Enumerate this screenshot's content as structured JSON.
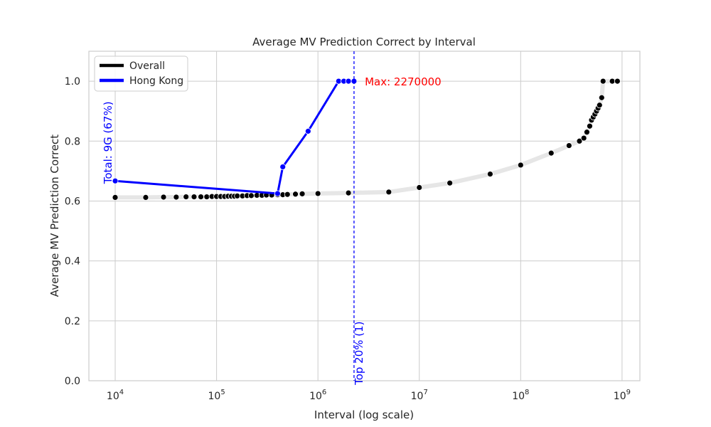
{
  "chart_data": {
    "type": "line",
    "title": "Average MV Prediction Correct by Interval",
    "xlabel": "Interval (log scale)",
    "ylabel": "Average MV Prediction Correct",
    "xscale": "log",
    "xlim": [
      5500,
      1500000000
    ],
    "ylim": [
      0,
      1.1
    ],
    "x_ticks": [
      {
        "value": 10000,
        "base": "10",
        "exp": "4"
      },
      {
        "value": 100000,
        "base": "10",
        "exp": "5"
      },
      {
        "value": 1000000,
        "base": "10",
        "exp": "6"
      },
      {
        "value": 10000000,
        "base": "10",
        "exp": "7"
      },
      {
        "value": 100000000,
        "base": "10",
        "exp": "8"
      },
      {
        "value": 1000000000,
        "base": "10",
        "exp": "9"
      }
    ],
    "y_ticks": [
      "0.0",
      "0.2",
      "0.4",
      "0.6",
      "0.8",
      "1.0"
    ],
    "grid": true,
    "legend_position": "top-left",
    "series": [
      {
        "name": "Overall",
        "color": "#000000",
        "line_color": "#e6e6e6",
        "x": [
          10000,
          20000,
          30000,
          40000,
          50000,
          60000,
          70000,
          80000,
          90000,
          100000,
          110000,
          120000,
          130000,
          140000,
          150000,
          160000,
          180000,
          200000,
          220000,
          250000,
          280000,
          310000,
          350000,
          400000,
          450000,
          500000,
          600000,
          700000,
          1000000,
          2000000,
          5000000,
          10000000,
          20000000,
          50000000,
          100000000,
          200000000,
          300000000,
          380000000,
          420000000,
          450000000,
          480000000,
          500000000,
          520000000,
          540000000,
          560000000,
          580000000,
          600000000,
          630000000,
          650000000,
          800000000,
          900000000
        ],
        "y": [
          0.612,
          0.612,
          0.613,
          0.613,
          0.614,
          0.614,
          0.614,
          0.614,
          0.615,
          0.615,
          0.615,
          0.615,
          0.616,
          0.616,
          0.616,
          0.617,
          0.617,
          0.618,
          0.618,
          0.619,
          0.619,
          0.62,
          0.62,
          0.621,
          0.621,
          0.622,
          0.623,
          0.624,
          0.625,
          0.627,
          0.63,
          0.645,
          0.66,
          0.69,
          0.72,
          0.76,
          0.785,
          0.8,
          0.81,
          0.83,
          0.85,
          0.87,
          0.88,
          0.89,
          0.9,
          0.91,
          0.92,
          0.945,
          1.0,
          1.0,
          1.0
        ]
      },
      {
        "name": "Hong Kong",
        "color": "#0000ff",
        "line_color": "#0000ff",
        "x": [
          10000,
          400000,
          450000,
          800000,
          1600000,
          1800000,
          2000000,
          2270000
        ],
        "y": [
          0.667,
          0.625,
          0.714,
          0.833,
          1.0,
          1.0,
          1.0,
          1.0
        ]
      }
    ],
    "annotations": [
      {
        "id": "max",
        "text": "Max: 2270000",
        "color": "#ff0000",
        "x": 2900000,
        "y": 1.0
      },
      {
        "id": "total",
        "text": "Total: 9G (67%)",
        "color": "#0000ff",
        "x": 10000,
        "y": 0.667,
        "rotate": true
      },
      {
        "id": "top20",
        "text": "Top 20% (1)",
        "color": "#0000ff",
        "x": 2270000,
        "y": 0.1,
        "rotate": true
      }
    ],
    "vline": {
      "x": 2270000,
      "color": "#0000ff",
      "dashed": true
    }
  }
}
